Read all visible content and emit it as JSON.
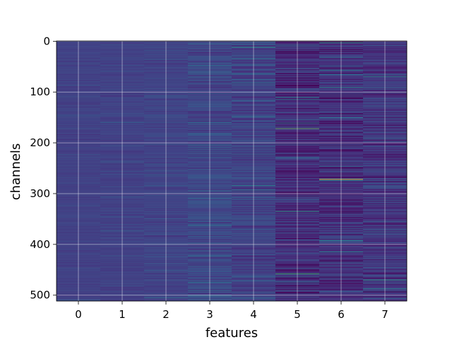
{
  "chart_data": {
    "type": "heatmap",
    "title": "",
    "xlabel": "features",
    "ylabel": "channels",
    "x_ticks": [
      "0",
      "1",
      "2",
      "3",
      "4",
      "5",
      "6",
      "7"
    ],
    "y_ticks": [
      "0",
      "100",
      "200",
      "300",
      "400",
      "500"
    ],
    "y_tick_values": [
      0,
      100,
      200,
      300,
      400,
      500
    ],
    "xlim": [
      -0.5,
      7.5
    ],
    "ylim": [
      511.5,
      -0.5
    ],
    "n_features": 8,
    "n_channels": 512,
    "grid": true,
    "colormap": "viridis",
    "column_profiles": [
      {
        "feature": 0,
        "mean": 0.24,
        "spread": 0.04
      },
      {
        "feature": 1,
        "mean": 0.24,
        "spread": 0.05
      },
      {
        "feature": 2,
        "mean": 0.25,
        "spread": 0.06
      },
      {
        "feature": 3,
        "mean": 0.27,
        "spread": 0.12
      },
      {
        "feature": 4,
        "mean": 0.25,
        "spread": 0.13
      },
      {
        "feature": 5,
        "mean": 0.16,
        "spread": 0.17
      },
      {
        "feature": 6,
        "mean": 0.17,
        "spread": 0.17
      },
      {
        "feature": 7,
        "mean": 0.2,
        "spread": 0.16
      }
    ],
    "highlights": [
      {
        "feature": 6,
        "channel": 272,
        "value": 1.0
      },
      {
        "feature": 5,
        "channel": 172,
        "value": 0.85
      },
      {
        "feature": 5,
        "channel": 458,
        "value": 0.8
      },
      {
        "feature": 5,
        "channel": 335,
        "value": 0.75
      },
      {
        "feature": 7,
        "channel": 470,
        "value": 0.75
      },
      {
        "feature": 4,
        "channel": 12,
        "value": 0.7
      },
      {
        "feature": 6,
        "channel": 3,
        "value": 0.7
      },
      {
        "feature": 6,
        "channel": 91,
        "value": 0.65
      },
      {
        "feature": 7,
        "channel": 70,
        "value": 0.65
      },
      {
        "feature": 5,
        "channel": 110,
        "value": 0.6
      },
      {
        "feature": 6,
        "channel": 415,
        "value": 0.6
      }
    ]
  }
}
